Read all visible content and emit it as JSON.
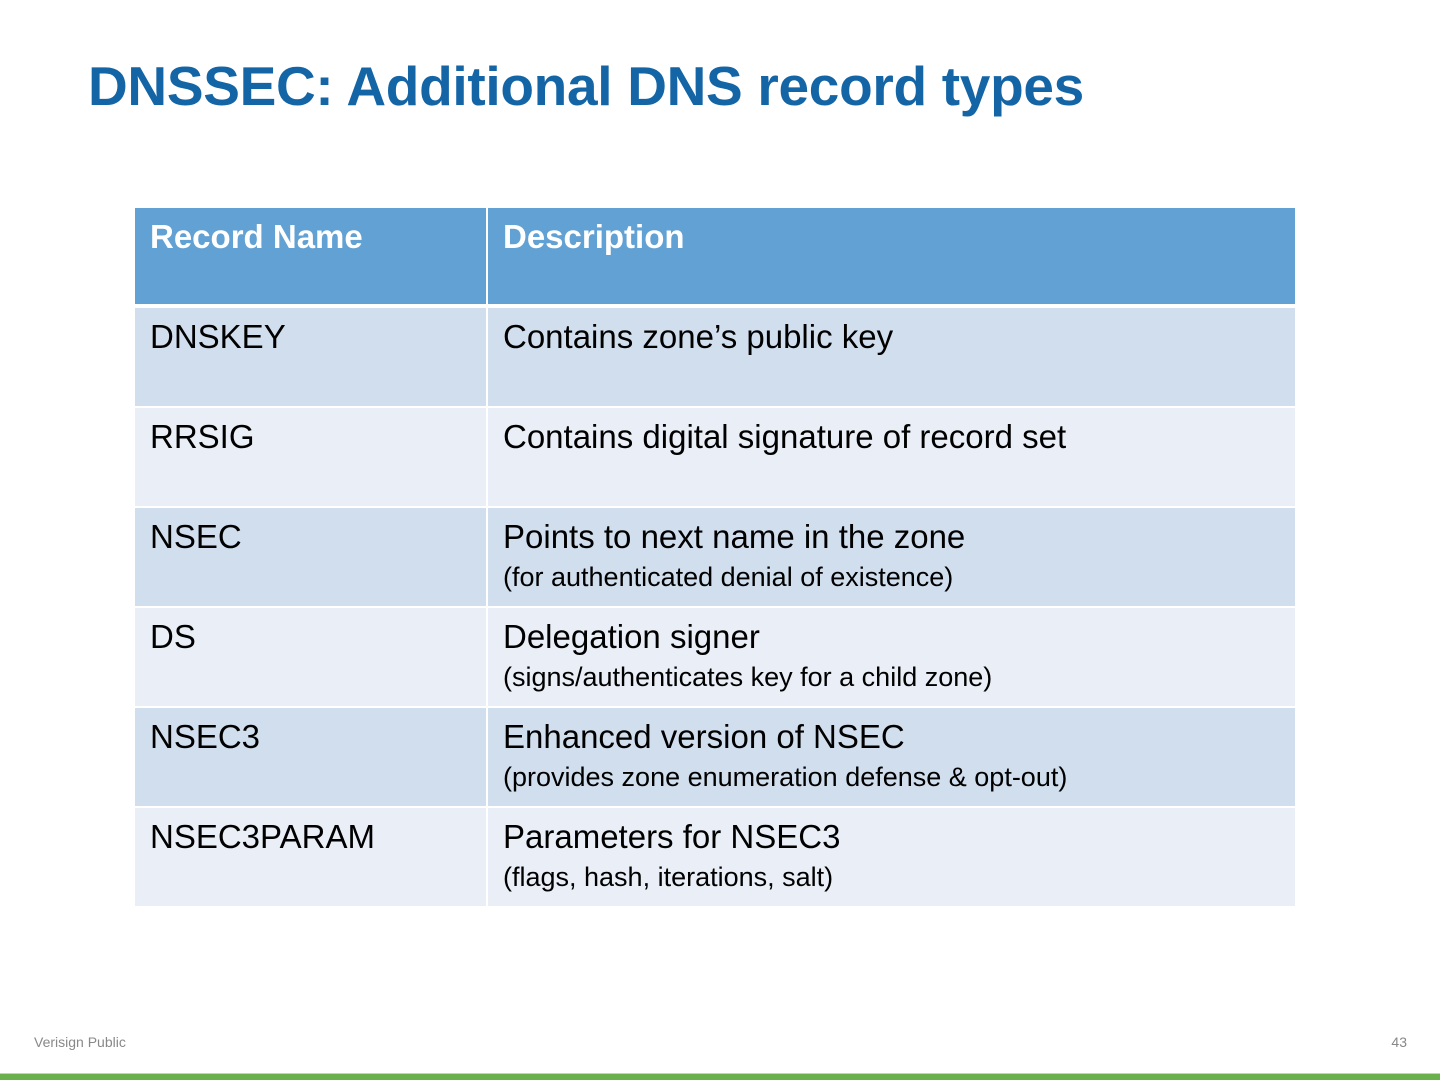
{
  "title": "DNSSEC: Additional DNS record types",
  "table": {
    "headers": [
      "Record Name",
      "Description"
    ],
    "rows": [
      {
        "name": "DNSKEY",
        "desc": "Contains zone’s public key",
        "note": ""
      },
      {
        "name": "RRSIG",
        "desc": "Contains digital signature of record set",
        "note": ""
      },
      {
        "name": "NSEC",
        "desc": "Points to next name in the zone",
        "note": "(for authenticated denial of existence)"
      },
      {
        "name": "DS",
        "desc": "Delegation signer",
        "note": "(signs/authenticates key for a child zone)"
      },
      {
        "name": "NSEC3",
        "desc": "Enhanced version of NSEC",
        "note": "(provides zone enumeration defense & opt-out)"
      },
      {
        "name": "NSEC3PARAM",
        "desc": "Parameters for NSEC3",
        "note": "(flags, hash, iterations, salt)"
      }
    ]
  },
  "footer": {
    "label": "Verisign Public",
    "page": "43"
  },
  "colors": {
    "title": "#1465a6",
    "header": "#62a1d3",
    "row_dark": "#d0deee",
    "row_light": "#e9eef7",
    "bar": "#6ab04c"
  }
}
